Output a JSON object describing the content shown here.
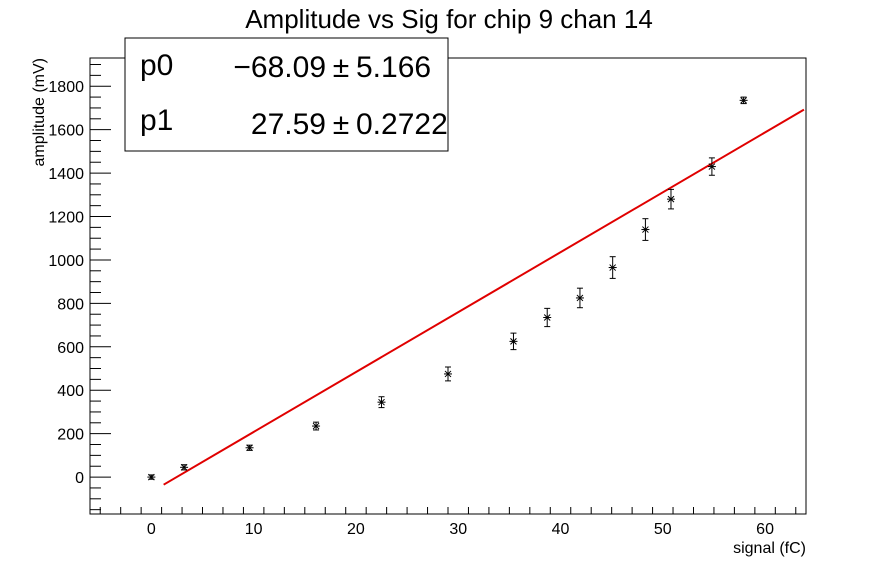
{
  "chart_data": {
    "type": "scatter",
    "title": "Amplitude vs Sig for chip 9 chan 14",
    "xlabel": "signal (fC)",
    "ylabel": "amplitude (mV)",
    "xlim": [
      -6,
      64
    ],
    "ylim": [
      -170,
      1930
    ],
    "x_ticks": [
      0,
      10,
      20,
      30,
      40,
      50,
      60
    ],
    "y_ticks": [
      0,
      200,
      400,
      600,
      800,
      1000,
      1200,
      1400,
      1600,
      1800
    ],
    "grid": false,
    "points": [
      {
        "x": 0,
        "y": 0,
        "err": 10
      },
      {
        "x": 3.2,
        "y": 45,
        "err": 12
      },
      {
        "x": 9.6,
        "y": 135,
        "err": 12
      },
      {
        "x": 16.1,
        "y": 235,
        "err": 18
      },
      {
        "x": 22.5,
        "y": 345,
        "err": 25
      },
      {
        "x": 29.0,
        "y": 475,
        "err": 32
      },
      {
        "x": 35.4,
        "y": 625,
        "err": 38
      },
      {
        "x": 38.7,
        "y": 735,
        "err": 42
      },
      {
        "x": 41.9,
        "y": 825,
        "err": 45
      },
      {
        "x": 45.1,
        "y": 965,
        "err": 50
      },
      {
        "x": 48.3,
        "y": 1140,
        "err": 50
      },
      {
        "x": 50.8,
        "y": 1280,
        "err": 45
      },
      {
        "x": 54.8,
        "y": 1430,
        "err": 40
      },
      {
        "x": 57.9,
        "y": 1735,
        "err": 15
      }
    ],
    "fit_line": {
      "color": "#e00000",
      "x_range": [
        1.2,
        63.8
      ],
      "p0": -68.09,
      "p1": 27.59
    },
    "stats_box": {
      "placement": "top-left",
      "rows": [
        {
          "name": "p0",
          "value": "−68.09",
          "pm": "±",
          "error": "5.166"
        },
        {
          "name": "p1",
          "value": "27.59",
          "pm": "±",
          "error": "0.2722"
        }
      ]
    }
  }
}
